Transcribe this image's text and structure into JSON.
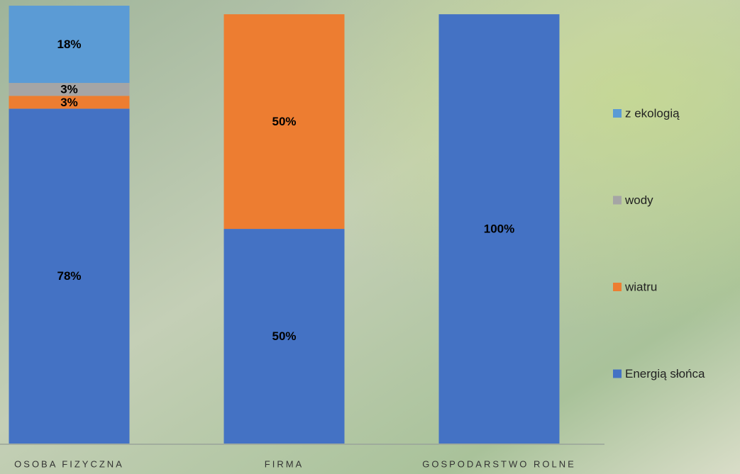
{
  "chart_data": {
    "type": "stacked-bar",
    "categories": [
      "OSOBA FIZYCZNA",
      "FIRMA",
      "GOSPODARSTWO ROLNE"
    ],
    "series": [
      {
        "name": "Energią słońca",
        "color": "#4472c4",
        "values": [
          78,
          50,
          100
        ],
        "value_labels": [
          "78%",
          "50%",
          "100%"
        ]
      },
      {
        "name": "wiatru",
        "color": "#ed7d31",
        "values": [
          3,
          50,
          0
        ],
        "value_labels": [
          "3%",
          "50%",
          null
        ]
      },
      {
        "name": "wody",
        "color": "#a5a5a5",
        "values": [
          3,
          0,
          0
        ],
        "value_labels": [
          "3%",
          null,
          null
        ]
      },
      {
        "name": "z ekologią",
        "color": "#5b9bd5",
        "values": [
          18,
          0,
          0
        ],
        "value_labels": [
          "18%",
          null,
          null
        ]
      }
    ]
  }
}
